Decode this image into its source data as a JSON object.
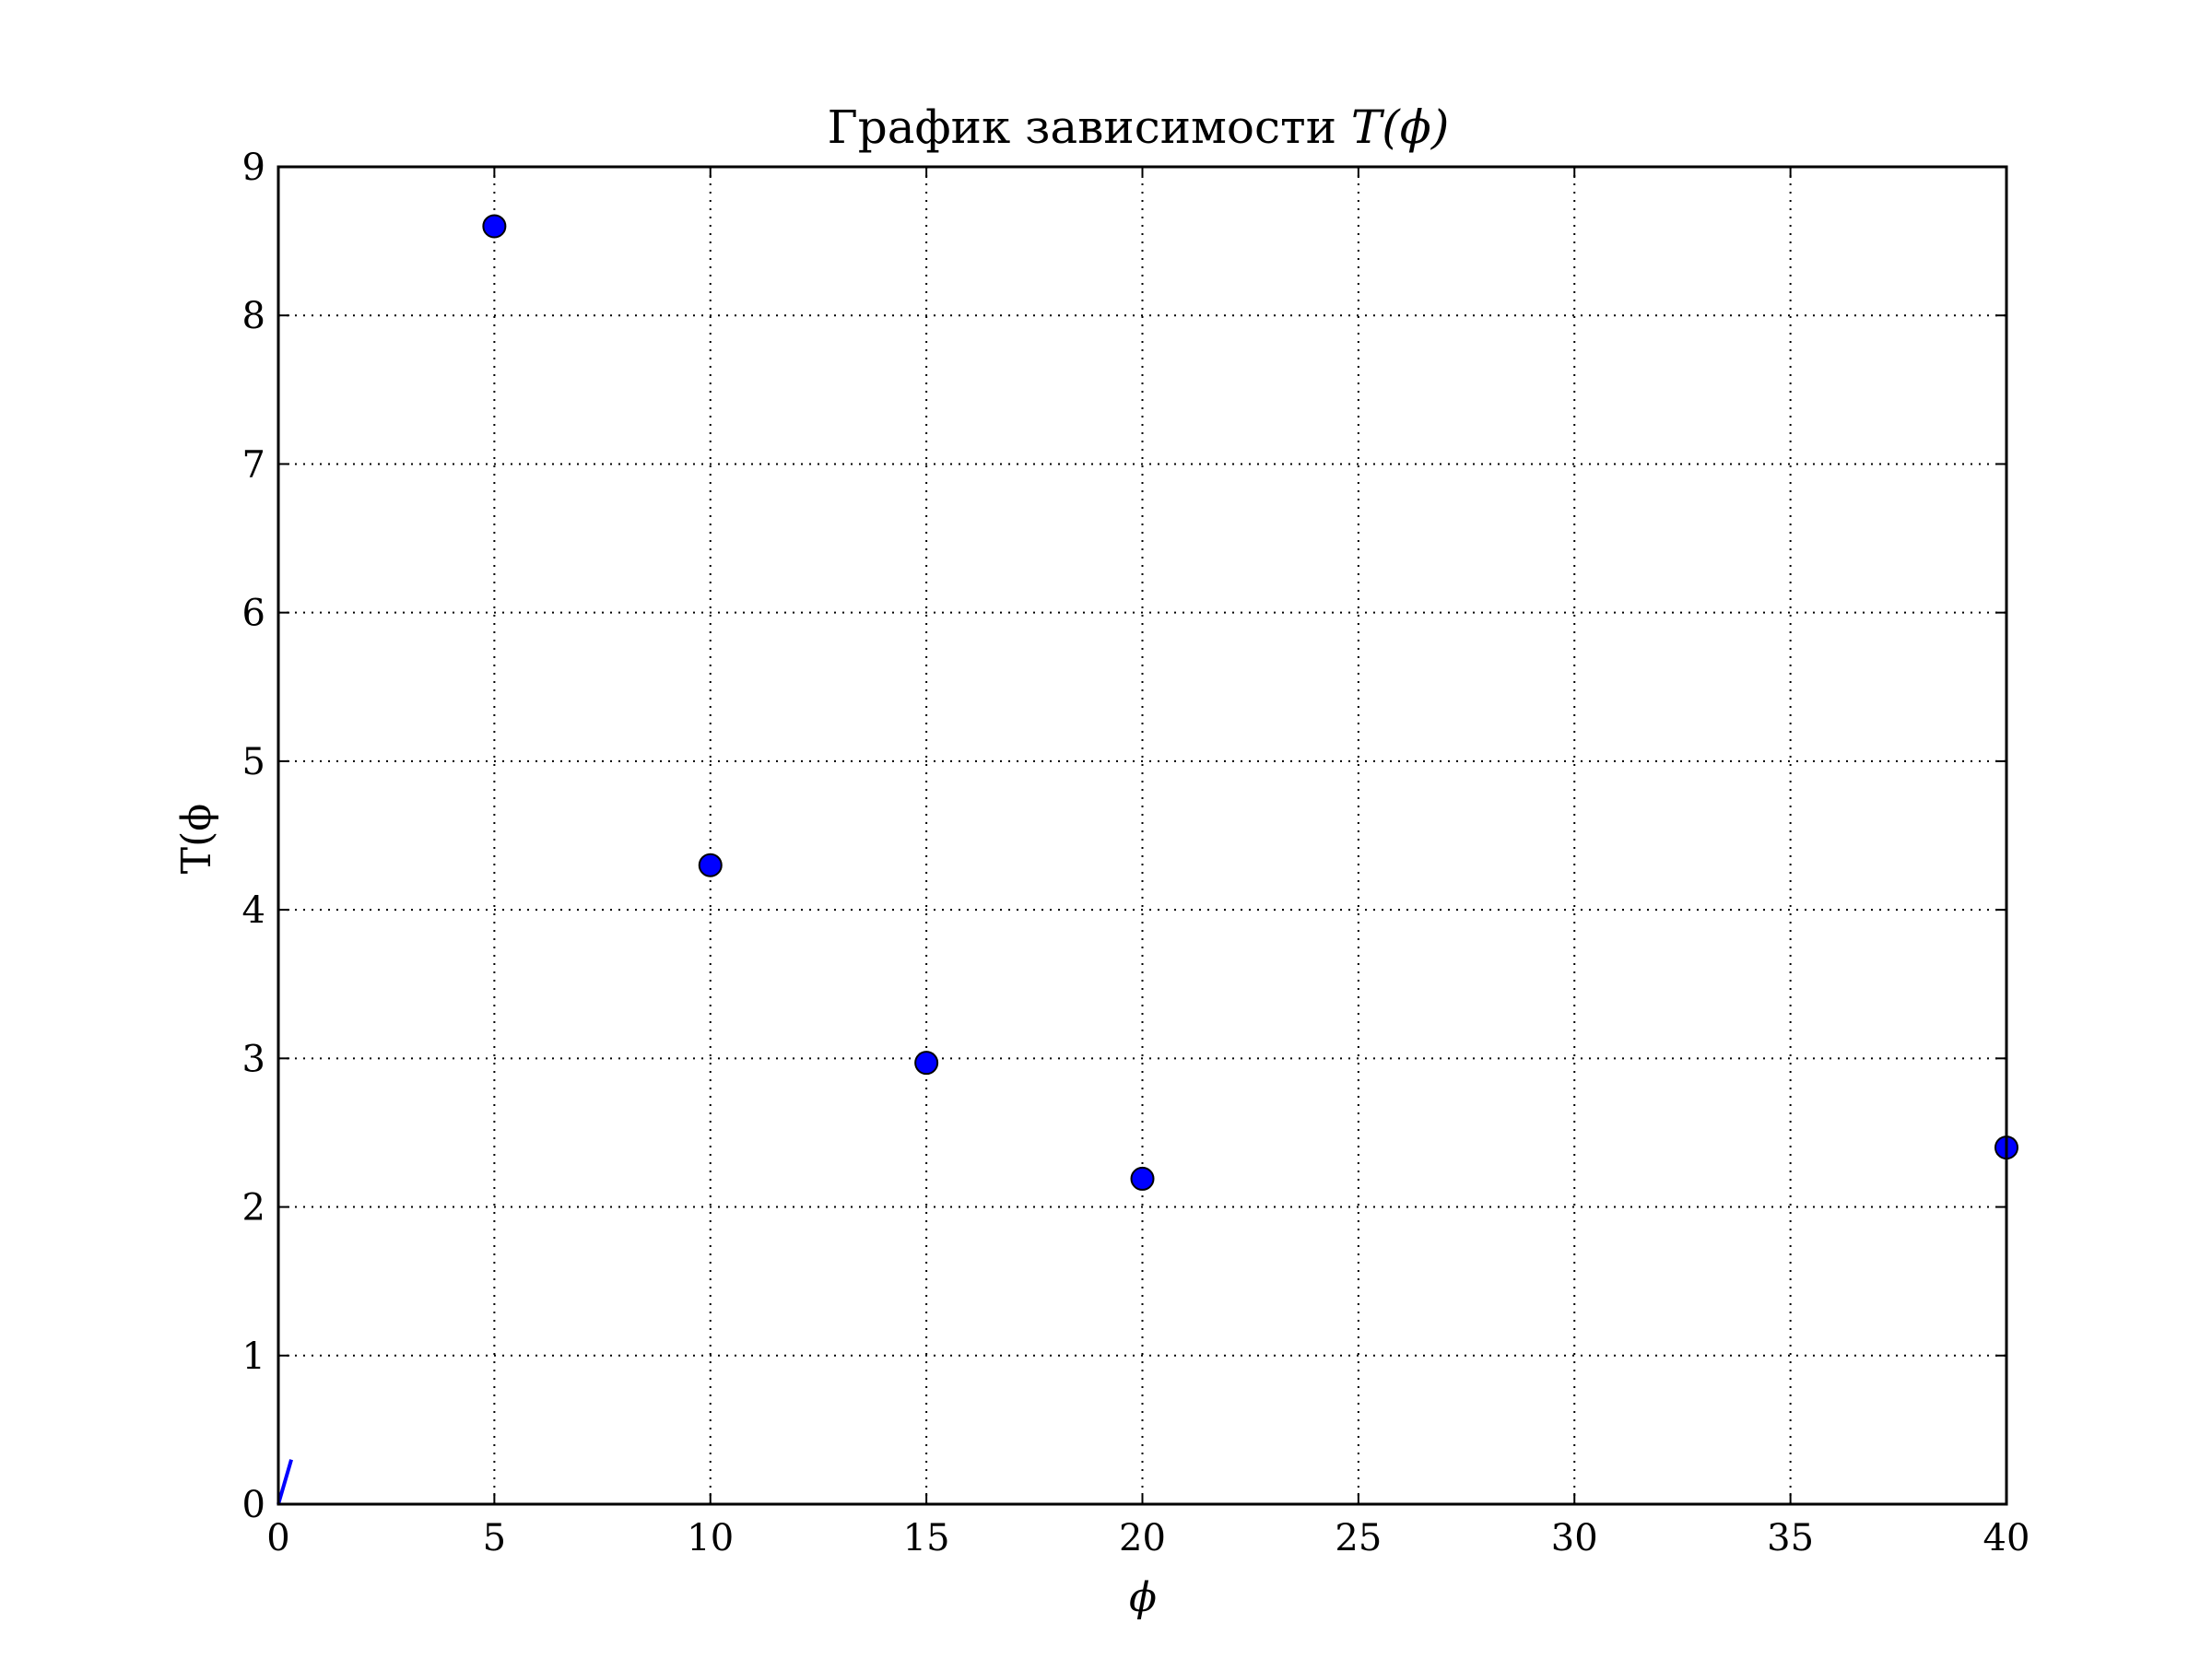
{
  "chart_data": {
    "type": "scatter",
    "title": "График зависимости T(ϕ)",
    "title_parts": {
      "text": "График зависимости ",
      "math": "T(ϕ)"
    },
    "xlabel": "ϕ",
    "ylabel": "T(ϕ",
    "xlim": [
      0,
      40
    ],
    "ylim": [
      0,
      9
    ],
    "x_ticks": [
      0,
      5,
      10,
      15,
      20,
      25,
      30,
      35,
      40
    ],
    "y_ticks": [
      0,
      1,
      2,
      3,
      4,
      5,
      6,
      7,
      8,
      9
    ],
    "grid": true,
    "grid_style": "dotted",
    "series": [
      {
        "marker": "circle",
        "color": "#0000ff",
        "edge_color": "#000000",
        "x": [
          5,
          10,
          15,
          20,
          40
        ],
        "y": [
          8.6,
          4.3,
          2.97,
          2.19,
          2.4
        ]
      },
      {
        "marker": "line",
        "color": "#0000ff",
        "x": [
          0,
          0.3
        ],
        "y": [
          0,
          0.3
        ]
      }
    ]
  }
}
